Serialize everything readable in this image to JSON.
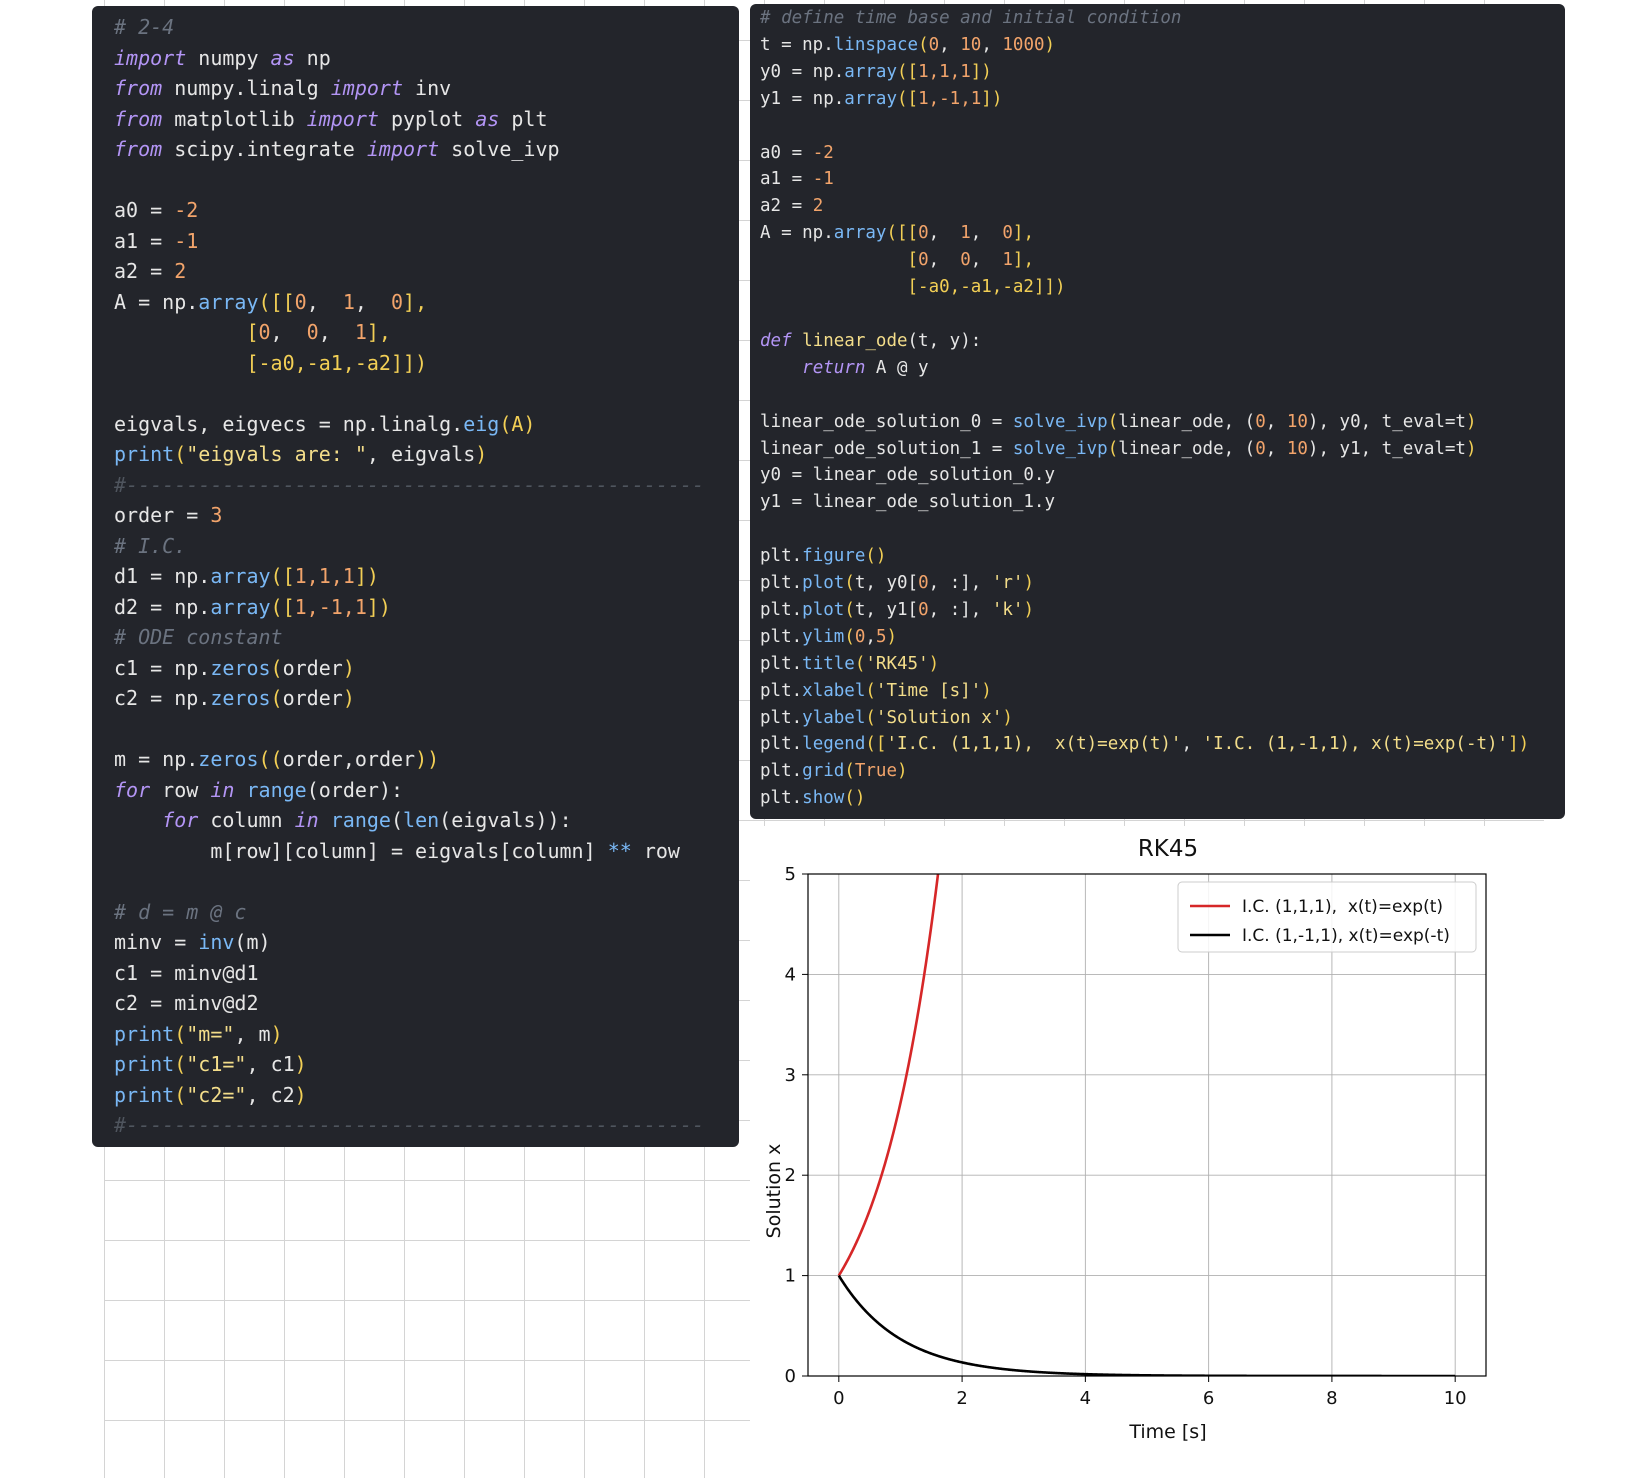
{
  "left_code": {
    "lines": [
      [
        [
          "# 2-4",
          "cm"
        ]
      ],
      [
        [
          "import",
          "kw"
        ],
        [
          " numpy ",
          ""
        ],
        [
          "as",
          "kw"
        ],
        [
          " np",
          ""
        ]
      ],
      [
        [
          "from",
          "kw"
        ],
        [
          " numpy.linalg ",
          ""
        ],
        [
          "import",
          "kw"
        ],
        [
          " inv",
          ""
        ]
      ],
      [
        [
          "from",
          "kw"
        ],
        [
          " matplotlib ",
          ""
        ],
        [
          "import",
          "kw"
        ],
        [
          " pyplot ",
          ""
        ],
        [
          "as",
          "kw"
        ],
        [
          " plt",
          ""
        ]
      ],
      [
        [
          "from",
          "kw"
        ],
        [
          " scipy.integrate ",
          ""
        ],
        [
          "import",
          "kw"
        ],
        [
          " solve_ivp",
          ""
        ]
      ],
      [],
      [
        [
          "a0 = ",
          ""
        ],
        [
          "-2",
          "nm"
        ]
      ],
      [
        [
          "a1 = ",
          ""
        ],
        [
          "-1",
          "nm"
        ]
      ],
      [
        [
          "a2 = ",
          ""
        ],
        [
          "2",
          "nm"
        ]
      ],
      [
        [
          "A = np.",
          ""
        ],
        [
          "array",
          "fn"
        ],
        [
          "([[",
          "pb"
        ],
        [
          "0",
          "nm"
        ],
        [
          ",  ",
          ""
        ],
        [
          "1",
          "nm"
        ],
        [
          ",  ",
          ""
        ],
        [
          "0",
          "nm"
        ],
        [
          "],",
          "pb"
        ]
      ],
      [
        [
          "           ",
          ""
        ],
        [
          "[",
          "pb"
        ],
        [
          "0",
          "nm"
        ],
        [
          ",  ",
          ""
        ],
        [
          "0",
          "nm"
        ],
        [
          ",  ",
          ""
        ],
        [
          "1",
          "nm"
        ],
        [
          "],",
          "pb"
        ]
      ],
      [
        [
          "           ",
          ""
        ],
        [
          "[-a0,-a1,-a2]])",
          "pb"
        ]
      ],
      [],
      [
        [
          "eigvals, eigvecs = np.linalg.",
          ""
        ],
        [
          "eig",
          "fn"
        ],
        [
          "(A)",
          "pb"
        ]
      ],
      [
        [
          "print",
          "fn"
        ],
        [
          "(",
          "pb"
        ],
        [
          "\"eigvals are: \"",
          "st"
        ],
        [
          ", eigvals",
          ""
        ],
        [
          ")",
          "pb"
        ]
      ],
      [
        [
          "#------------------------------------------------",
          "hr"
        ]
      ],
      [
        [
          "order = ",
          ""
        ],
        [
          "3",
          "nm"
        ]
      ],
      [
        [
          "# I.C.",
          "cm"
        ]
      ],
      [
        [
          "d1 = np.",
          ""
        ],
        [
          "array",
          "fn"
        ],
        [
          "([",
          "pb"
        ],
        [
          "1,1,1",
          "nm"
        ],
        [
          "])",
          "pb"
        ]
      ],
      [
        [
          "d2 = np.",
          ""
        ],
        [
          "array",
          "fn"
        ],
        [
          "([",
          "pb"
        ],
        [
          "1,-1,1",
          "nm"
        ],
        [
          "])",
          "pb"
        ]
      ],
      [
        [
          "# ODE constant",
          "cm"
        ]
      ],
      [
        [
          "c1 = np.",
          ""
        ],
        [
          "zeros",
          "fn"
        ],
        [
          "(",
          "pb"
        ],
        [
          "order",
          ""
        ],
        [
          ")",
          "pb"
        ]
      ],
      [
        [
          "c2 = np.",
          ""
        ],
        [
          "zeros",
          "fn"
        ],
        [
          "(",
          "pb"
        ],
        [
          "order",
          ""
        ],
        [
          ")",
          "pb"
        ]
      ],
      [],
      [
        [
          "m = np.",
          ""
        ],
        [
          "zeros",
          "fn"
        ],
        [
          "((",
          "pb"
        ],
        [
          "order,order",
          ""
        ],
        [
          "))",
          "pb"
        ]
      ],
      [
        [
          "for",
          "kw"
        ],
        [
          " row ",
          ""
        ],
        [
          "in",
          "kw"
        ],
        [
          " ",
          ""
        ],
        [
          "range",
          "fn"
        ],
        [
          "(order):",
          ""
        ]
      ],
      [
        [
          "    ",
          ""
        ],
        [
          "for",
          "kw"
        ],
        [
          " column ",
          ""
        ],
        [
          "in",
          "kw"
        ],
        [
          " ",
          ""
        ],
        [
          "range",
          "fn"
        ],
        [
          "(",
          ""
        ],
        [
          "len",
          "fn"
        ],
        [
          "(eigvals)):",
          ""
        ]
      ],
      [
        [
          "        m[row][column] = eigvals[column] ",
          ""
        ],
        [
          "**",
          "op"
        ],
        [
          " row",
          ""
        ]
      ],
      [],
      [
        [
          "# d = m @ c",
          "cm"
        ]
      ],
      [
        [
          "minv = ",
          ""
        ],
        [
          "inv",
          "fn"
        ],
        [
          "(m)",
          ""
        ]
      ],
      [
        [
          "c1 = minv@d1",
          ""
        ]
      ],
      [
        [
          "c2 = minv@d2",
          ""
        ]
      ],
      [
        [
          "print",
          "fn"
        ],
        [
          "(",
          "pb"
        ],
        [
          "\"m=\"",
          "st"
        ],
        [
          ", m",
          ""
        ],
        [
          ")",
          "pb"
        ]
      ],
      [
        [
          "print",
          "fn"
        ],
        [
          "(",
          "pb"
        ],
        [
          "\"c1=\"",
          "st"
        ],
        [
          ", c1",
          ""
        ],
        [
          ")",
          "pb"
        ]
      ],
      [
        [
          "print",
          "fn"
        ],
        [
          "(",
          "pb"
        ],
        [
          "\"c2=\"",
          "st"
        ],
        [
          ", c2",
          ""
        ],
        [
          ")",
          "pb"
        ]
      ],
      [
        [
          "#------------------------------------------------",
          "hr"
        ]
      ]
    ]
  },
  "right_code": {
    "lines": [
      [
        [
          "# define time base and initial condition",
          "cm"
        ]
      ],
      [
        [
          "t = np.",
          ""
        ],
        [
          "linspace",
          "fn"
        ],
        [
          "(",
          "pb"
        ],
        [
          "0",
          "nm"
        ],
        [
          ", ",
          ""
        ],
        [
          "10",
          "nm"
        ],
        [
          ", ",
          ""
        ],
        [
          "1000",
          "nm"
        ],
        [
          ")",
          "pb"
        ]
      ],
      [
        [
          "y0 = np.",
          ""
        ],
        [
          "array",
          "fn"
        ],
        [
          "([",
          "pb"
        ],
        [
          "1,1,1",
          "nm"
        ],
        [
          "])",
          "pb"
        ]
      ],
      [
        [
          "y1 = np.",
          ""
        ],
        [
          "array",
          "fn"
        ],
        [
          "([",
          "pb"
        ],
        [
          "1,-1,1",
          "nm"
        ],
        [
          "])",
          "pb"
        ]
      ],
      [],
      [
        [
          "a0 = ",
          ""
        ],
        [
          "-2",
          "nm"
        ]
      ],
      [
        [
          "a1 = ",
          ""
        ],
        [
          "-1",
          "nm"
        ]
      ],
      [
        [
          "a2 = ",
          ""
        ],
        [
          "2",
          "nm"
        ]
      ],
      [
        [
          "A = np.",
          ""
        ],
        [
          "array",
          "fn"
        ],
        [
          "([[",
          "pb"
        ],
        [
          "0",
          "nm"
        ],
        [
          ",  ",
          ""
        ],
        [
          "1",
          "nm"
        ],
        [
          ",  ",
          ""
        ],
        [
          "0",
          "nm"
        ],
        [
          "],",
          "pb"
        ]
      ],
      [
        [
          "              ",
          ""
        ],
        [
          "[",
          "pb"
        ],
        [
          "0",
          "nm"
        ],
        [
          ",  ",
          ""
        ],
        [
          "0",
          "nm"
        ],
        [
          ",  ",
          ""
        ],
        [
          "1",
          "nm"
        ],
        [
          "],",
          "pb"
        ]
      ],
      [
        [
          "              ",
          ""
        ],
        [
          "[-a0,-a1,-a2]])",
          "pb"
        ]
      ],
      [],
      [
        [
          "def",
          "kw"
        ],
        [
          " ",
          ""
        ],
        [
          "linear_ode",
          "st"
        ],
        [
          "(t, y):",
          ""
        ]
      ],
      [
        [
          "    ",
          ""
        ],
        [
          "return",
          "kw"
        ],
        [
          " A @ y",
          ""
        ]
      ],
      [],
      [
        [
          "linear_ode_solution_0 = ",
          ""
        ],
        [
          "solve_ivp",
          "fn"
        ],
        [
          "(",
          "pb"
        ],
        [
          "linear_ode",
          ""
        ],
        [
          ", (",
          ""
        ],
        [
          "0",
          "nm"
        ],
        [
          ", ",
          ""
        ],
        [
          "10",
          "nm"
        ],
        [
          "), y0, t_eval=t",
          ""
        ],
        [
          ")",
          "pb"
        ]
      ],
      [
        [
          "linear_ode_solution_1 = ",
          ""
        ],
        [
          "solve_ivp",
          "fn"
        ],
        [
          "(",
          "pb"
        ],
        [
          "linear_ode",
          ""
        ],
        [
          ", (",
          ""
        ],
        [
          "0",
          "nm"
        ],
        [
          ", ",
          ""
        ],
        [
          "10",
          "nm"
        ],
        [
          "), y1, t_eval=t",
          ""
        ],
        [
          ")",
          "pb"
        ]
      ],
      [
        [
          "y0 = linear_ode_solution_0.y",
          ""
        ]
      ],
      [
        [
          "y1 = linear_ode_solution_1.y",
          ""
        ]
      ],
      [],
      [
        [
          "plt.",
          ""
        ],
        [
          "figure",
          "fn"
        ],
        [
          "()",
          "pb"
        ]
      ],
      [
        [
          "plt.",
          ""
        ],
        [
          "plot",
          "fn"
        ],
        [
          "(",
          "pb"
        ],
        [
          "t, y0[",
          ""
        ],
        [
          "0",
          "nm"
        ],
        [
          ", :], ",
          ""
        ],
        [
          "'r'",
          "st"
        ],
        [
          ")",
          "pb"
        ]
      ],
      [
        [
          "plt.",
          ""
        ],
        [
          "plot",
          "fn"
        ],
        [
          "(",
          "pb"
        ],
        [
          "t, y1[",
          ""
        ],
        [
          "0",
          "nm"
        ],
        [
          ", :], ",
          ""
        ],
        [
          "'k'",
          "st"
        ],
        [
          ")",
          "pb"
        ]
      ],
      [
        [
          "plt.",
          ""
        ],
        [
          "ylim",
          "fn"
        ],
        [
          "(",
          "pb"
        ],
        [
          "0",
          "nm"
        ],
        [
          ",",
          ""
        ],
        [
          "5",
          "nm"
        ],
        [
          ")",
          "pb"
        ]
      ],
      [
        [
          "plt.",
          ""
        ],
        [
          "title",
          "fn"
        ],
        [
          "(",
          "pb"
        ],
        [
          "'RK45'",
          "st"
        ],
        [
          ")",
          "pb"
        ]
      ],
      [
        [
          "plt.",
          ""
        ],
        [
          "xlabel",
          "fn"
        ],
        [
          "(",
          "pb"
        ],
        [
          "'Time [s]'",
          "st"
        ],
        [
          ")",
          "pb"
        ]
      ],
      [
        [
          "plt.",
          ""
        ],
        [
          "ylabel",
          "fn"
        ],
        [
          "(",
          "pb"
        ],
        [
          "'Solution x'",
          "st"
        ],
        [
          ")",
          "pb"
        ]
      ],
      [
        [
          "plt.",
          ""
        ],
        [
          "legend",
          "fn"
        ],
        [
          "([",
          "pb"
        ],
        [
          "'I.C. (1,1,1),  x(t)=exp(t)'",
          "st"
        ],
        [
          ", ",
          ""
        ],
        [
          "'I.C. (1,-1,1), x(t)=exp(-t)'",
          "st"
        ],
        [
          "])",
          "pb"
        ]
      ],
      [
        [
          "plt.",
          ""
        ],
        [
          "grid",
          "fn"
        ],
        [
          "(",
          "pb"
        ],
        [
          "True",
          "nm"
        ],
        [
          ")",
          "pb"
        ]
      ],
      [
        [
          "plt.",
          ""
        ],
        [
          "show",
          "fn"
        ],
        [
          "()",
          "pb"
        ]
      ]
    ]
  },
  "chart_data": {
    "type": "line",
    "title": "RK45",
    "xlabel": "Time [s]",
    "ylabel": "Solution x",
    "xlim": [
      -0.5,
      10.5
    ],
    "ylim": [
      0,
      5
    ],
    "xticks": [
      "0",
      "2",
      "4",
      "6",
      "8",
      "10"
    ],
    "yticks": [
      "0",
      "1",
      "2",
      "3",
      "4",
      "5"
    ],
    "grid": true,
    "legend_position": "top-right",
    "series": [
      {
        "name": "I.C. (1,1,1),  x(t)=exp(t)",
        "color": "#d62728",
        "function": "exp(t)",
        "x_range": [
          0,
          10
        ]
      },
      {
        "name": "I.C. (1,-1,1), x(t)=exp(-t)",
        "color": "#000000",
        "function": "exp(-t)",
        "x_range": [
          0,
          10
        ]
      }
    ]
  }
}
